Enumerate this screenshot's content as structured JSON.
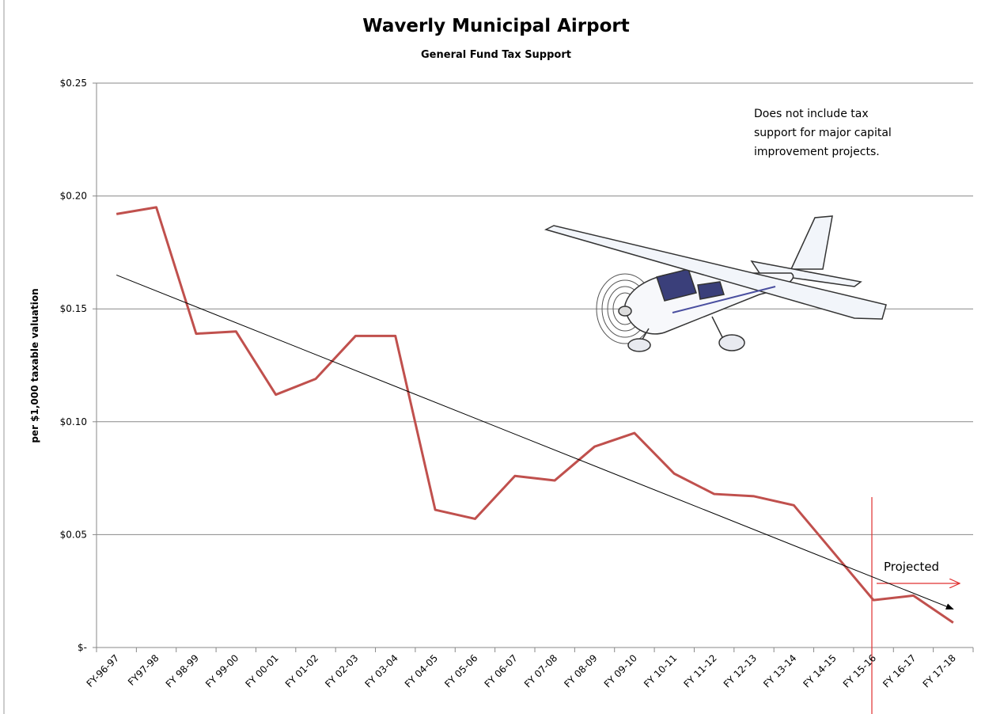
{
  "chart_data": {
    "type": "line",
    "title": "Waverly Municipal Airport",
    "subtitle": "General Fund Tax Support",
    "y_label": "per $1,000 taxable valuation",
    "annotation": [
      "Does not include tax",
      "support for major capital",
      "improvement  projects."
    ],
    "projected_label": "Projected",
    "categories": [
      "FY-96-97",
      "FY97-98",
      "FY 98-99",
      "FY 99-00",
      "FY 00-01",
      "FY 01-02",
      "FY 02-03",
      "FY 03-04",
      "FY 04-05",
      "FY 05-06",
      "FY 06-07",
      "FY 07-08",
      "FY 08-09",
      "FY 09-10",
      "FY 10-11",
      "FY 11-12",
      "FY 12-13",
      "FY 13-14",
      "FY 14-15",
      "FY 15-16",
      "FY 16-17",
      "FY 17-18"
    ],
    "series": [
      {
        "color": "#c0504d",
        "values": [
          0.192,
          0.195,
          0.139,
          0.14,
          0.112,
          0.119,
          0.138,
          0.138,
          0.061,
          0.057,
          0.076,
          0.074,
          0.089,
          0.095,
          0.077,
          0.068,
          0.067,
          0.063,
          0.042,
          0.021,
          0.023,
          0.011
        ]
      }
    ],
    "trend": {
      "color": "#000000",
      "values": [
        0.165,
        0.017
      ]
    },
    "ylim": [
      0,
      0.25
    ],
    "yticks": [
      {
        "value": 0,
        "label": "$-"
      },
      {
        "value": 0.05,
        "label": "$0.05"
      },
      {
        "value": 0.1,
        "label": "$0.10"
      },
      {
        "value": 0.15,
        "label": "$0.15"
      },
      {
        "value": 0.2,
        "label": "$0.20"
      },
      {
        "value": 0.25,
        "label": "$0.25"
      }
    ],
    "grid": true
  }
}
